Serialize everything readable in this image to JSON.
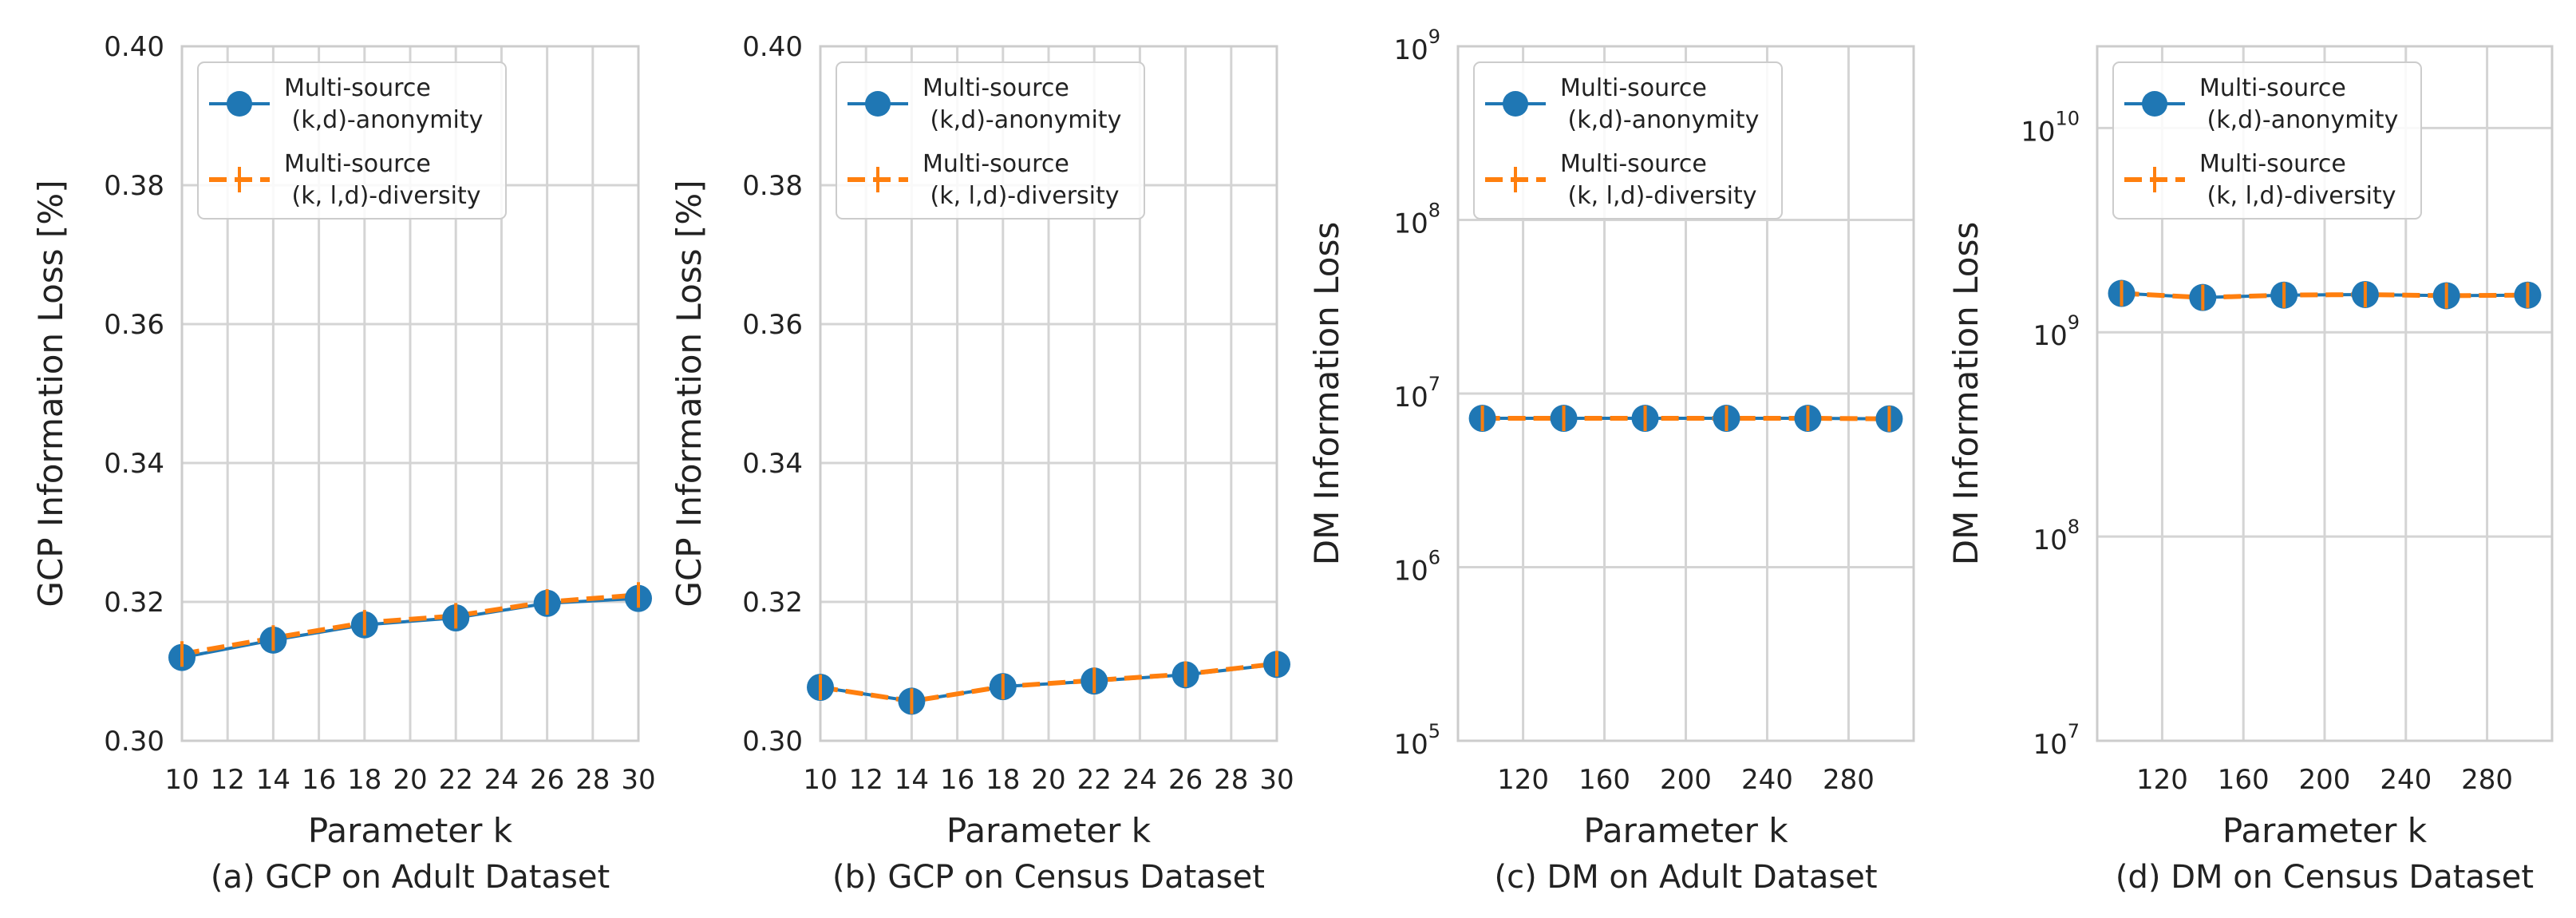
{
  "chart_data": [
    {
      "type": "line",
      "yscale": "linear",
      "caption": "(a) GCP on Adult Dataset",
      "xlabel": "Parameter k",
      "ylabel": "GCP Information Loss [%]",
      "xlim": [
        10,
        30
      ],
      "ylim": [
        0.3,
        0.4
      ],
      "xticks": [
        "10",
        "12",
        "14",
        "16",
        "18",
        "20",
        "22",
        "24",
        "26",
        "28",
        "30"
      ],
      "yticks": [
        "0.30",
        "0.32",
        "0.34",
        "0.36",
        "0.38",
        "0.40"
      ],
      "grid": true,
      "legend_position": "top-left",
      "x": [
        10,
        14,
        18,
        22,
        26,
        30
      ],
      "series": [
        {
          "name": "Multi-source (k,d)-anonymity",
          "legend_lines": [
            "Multi-source",
            " (k,d)-anonymity"
          ],
          "color": "#1f77b4",
          "marker": "circle",
          "linestyle": "solid",
          "values": [
            0.312,
            0.3145,
            0.3167,
            0.3177,
            0.3198,
            0.3205
          ]
        },
        {
          "name": "Multi-source (k, l,d)-diversity",
          "legend_lines": [
            "Multi-source",
            " (k, l,d)-diversity"
          ],
          "color": "#ff7f0e",
          "marker": "vline",
          "linestyle": "dashed",
          "values": [
            0.3125,
            0.3148,
            0.317,
            0.318,
            0.32,
            0.321
          ]
        }
      ]
    },
    {
      "type": "line",
      "yscale": "linear",
      "caption": "(b) GCP on Census Dataset",
      "xlabel": "Parameter k",
      "ylabel": "GCP Information Loss [%]",
      "xlim": [
        10,
        30
      ],
      "ylim": [
        0.3,
        0.4
      ],
      "xticks": [
        "10",
        "12",
        "14",
        "16",
        "18",
        "20",
        "22",
        "24",
        "26",
        "28",
        "30"
      ],
      "yticks": [
        "0.30",
        "0.32",
        "0.34",
        "0.36",
        "0.38",
        "0.40"
      ],
      "grid": true,
      "legend_position": "top-left",
      "x": [
        10,
        14,
        18,
        22,
        26,
        30
      ],
      "series": [
        {
          "name": "Multi-source (k,d)-anonymity",
          "legend_lines": [
            "Multi-source",
            " (k,d)-anonymity"
          ],
          "color": "#1f77b4",
          "marker": "circle",
          "linestyle": "solid",
          "values": [
            0.3077,
            0.3057,
            0.3078,
            0.3086,
            0.3095,
            0.311
          ]
        },
        {
          "name": "Multi-source (k, l,d)-diversity",
          "legend_lines": [
            "Multi-source",
            " (k, l,d)-diversity"
          ],
          "color": "#ff7f0e",
          "marker": "vline",
          "linestyle": "dashed",
          "values": [
            0.3077,
            0.3057,
            0.3078,
            0.3087,
            0.3096,
            0.3111
          ]
        }
      ]
    },
    {
      "type": "line",
      "yscale": "log",
      "caption": "(c) DM on Adult Dataset",
      "xlabel": "Parameter k",
      "ylabel": "DM Information Loss",
      "xlim": [
        88,
        312
      ],
      "ylim_exp": [
        5,
        9
      ],
      "xticks": [
        "120",
        "160",
        "200",
        "240",
        "280"
      ],
      "yticks": [
        {
          "base": "10",
          "exp": "5"
        },
        {
          "base": "10",
          "exp": "6"
        },
        {
          "base": "10",
          "exp": "7"
        },
        {
          "base": "10",
          "exp": "8"
        },
        {
          "base": "10",
          "exp": "9"
        }
      ],
      "grid": true,
      "legend_position": "top-left",
      "x": [
        100,
        140,
        180,
        220,
        260,
        300
      ],
      "series": [
        {
          "name": "Multi-source (k,d)-anonymity",
          "legend_lines": [
            "Multi-source",
            " (k,d)-anonymity"
          ],
          "color": "#1f77b4",
          "marker": "circle",
          "linestyle": "solid",
          "values": [
            7200000,
            7200000,
            7200000,
            7200000,
            7200000,
            7150000
          ]
        },
        {
          "name": "Multi-source (k, l,d)-diversity",
          "legend_lines": [
            "Multi-source",
            " (k, l,d)-diversity"
          ],
          "color": "#ff7f0e",
          "marker": "vline",
          "linestyle": "dashed",
          "values": [
            7200000,
            7200000,
            7200000,
            7200000,
            7200000,
            7150000
          ]
        }
      ]
    },
    {
      "type": "line",
      "yscale": "log",
      "caption": "(d) DM on Census Dataset",
      "xlabel": "Parameter k",
      "ylabel": "DM Information Loss",
      "xlim": [
        88,
        312
      ],
      "ylim_exp": [
        7,
        10.4
      ],
      "xticks": [
        "120",
        "160",
        "200",
        "240",
        "280"
      ],
      "yticks": [
        {
          "base": "10",
          "exp": "7"
        },
        {
          "base": "10",
          "exp": "8"
        },
        {
          "base": "10",
          "exp": "9"
        },
        {
          "base": "10",
          "exp": "10"
        }
      ],
      "grid": true,
      "legend_position": "top-left",
      "x": [
        100,
        140,
        180,
        220,
        260,
        300
      ],
      "series": [
        {
          "name": "Multi-source (k,d)-anonymity",
          "legend_lines": [
            "Multi-source",
            " (k,d)-anonymity"
          ],
          "color": "#1f77b4",
          "marker": "circle",
          "linestyle": "solid",
          "values": [
            1550000000,
            1480000000,
            1520000000,
            1530000000,
            1510000000,
            1520000000
          ]
        },
        {
          "name": "Multi-source (k, l,d)-diversity",
          "legend_lines": [
            "Multi-source",
            " (k, l,d)-diversity"
          ],
          "color": "#ff7f0e",
          "marker": "vline",
          "linestyle": "dashed",
          "values": [
            1550000000,
            1480000000,
            1520000000,
            1530000000,
            1510000000,
            1520000000
          ]
        }
      ]
    }
  ]
}
